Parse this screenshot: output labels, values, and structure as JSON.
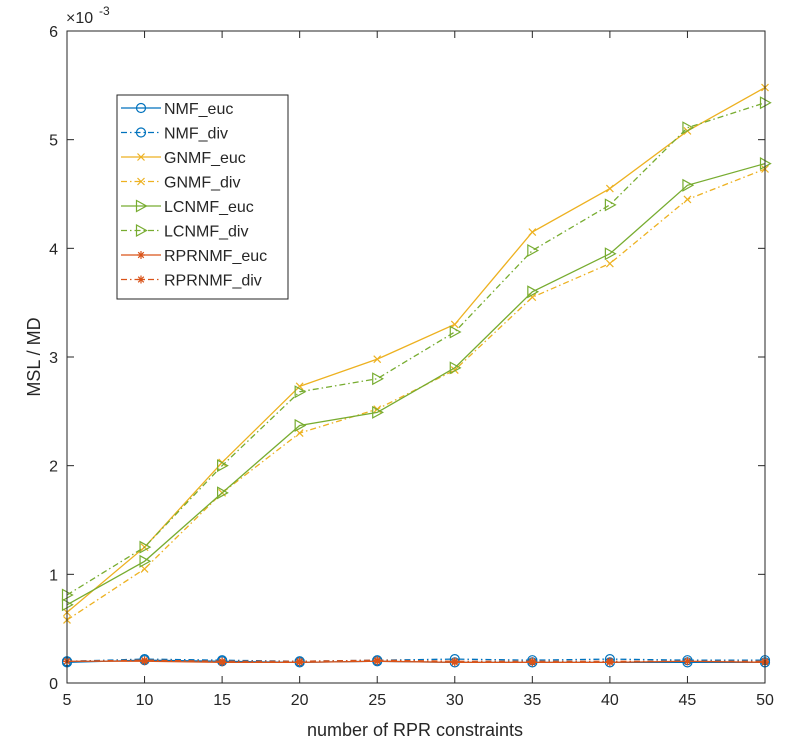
{
  "chart_data": {
    "type": "line",
    "title": "",
    "xlabel": "number of RPR constraints",
    "ylabel": "MSL / MD",
    "y_exponent_label": "×10",
    "y_exponent_power": "-3",
    "x": [
      5,
      10,
      15,
      20,
      25,
      30,
      35,
      40,
      45,
      50
    ],
    "x_ticks": [
      "5",
      "10",
      "15",
      "20",
      "25",
      "30",
      "35",
      "40",
      "45",
      "50"
    ],
    "xlim": [
      5,
      50
    ],
    "ylim": [
      0,
      6
    ],
    "y_ticks": [
      0,
      1,
      2,
      3,
      4,
      5,
      6
    ],
    "y_tick_labels": [
      "0",
      "1",
      "2",
      "3",
      "4",
      "5",
      "6"
    ],
    "legend_position": "upper-left",
    "series": [
      {
        "name": "NMF_euc",
        "color": "#0072bd",
        "line": "solid",
        "marker": "circle",
        "values": [
          0.19,
          0.21,
          0.2,
          0.19,
          0.2,
          0.19,
          0.19,
          0.19,
          0.19,
          0.19
        ]
      },
      {
        "name": "NMF_div",
        "color": "#0072bd",
        "line": "dashdot",
        "marker": "circle",
        "values": [
          0.2,
          0.22,
          0.21,
          0.2,
          0.21,
          0.22,
          0.21,
          0.22,
          0.21,
          0.21
        ]
      },
      {
        "name": "GNMF_euc",
        "color": "#edb120",
        "line": "solid",
        "marker": "x",
        "values": [
          0.65,
          1.25,
          2.03,
          2.73,
          2.98,
          3.3,
          4.15,
          4.55,
          5.08,
          5.48
        ]
      },
      {
        "name": "GNMF_div",
        "color": "#edb120",
        "line": "dashdot",
        "marker": "x",
        "values": [
          0.58,
          1.05,
          1.75,
          2.3,
          2.52,
          2.88,
          3.55,
          3.86,
          4.45,
          4.73
        ]
      },
      {
        "name": "LCNMF_euc",
        "color": "#77ac30",
        "line": "solid",
        "marker": "triangle-right",
        "values": [
          0.72,
          1.12,
          1.75,
          2.37,
          2.49,
          2.9,
          3.6,
          3.95,
          4.58,
          4.78
        ]
      },
      {
        "name": "LCNMF_div",
        "color": "#77ac30",
        "line": "dashdot",
        "marker": "triangle-right",
        "values": [
          0.81,
          1.25,
          2.0,
          2.68,
          2.8,
          3.23,
          3.98,
          4.4,
          5.11,
          5.34
        ]
      },
      {
        "name": "RPRNMF_euc",
        "color": "#d95319",
        "line": "solid",
        "marker": "asterisk",
        "values": [
          0.2,
          0.2,
          0.19,
          0.19,
          0.2,
          0.19,
          0.19,
          0.19,
          0.2,
          0.19
        ]
      },
      {
        "name": "RPRNMF_div",
        "color": "#d95319",
        "line": "dashdot",
        "marker": "asterisk",
        "values": [
          0.2,
          0.21,
          0.2,
          0.2,
          0.21,
          0.2,
          0.2,
          0.2,
          0.2,
          0.2
        ]
      }
    ]
  }
}
